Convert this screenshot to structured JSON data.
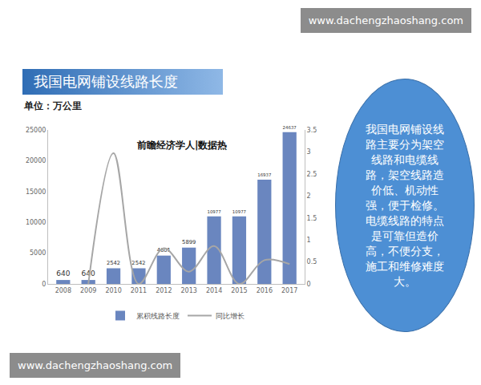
{
  "chart_data": {
    "type": "bar",
    "title": "我国电网铺设线路长度",
    "ylabel": "单位：万公里",
    "annotations": [
      {
        "text": "前瞻经济学人|数据热"
      }
    ],
    "categories": [
      "2008",
      "2009",
      "2010",
      "2011",
      "2012",
      "2013",
      "2014",
      "2015",
      "2016",
      "2017"
    ],
    "series": [
      {
        "name": "累积线路长度",
        "type": "bar",
        "color": "#6a86bf",
        "data_labels": true,
        "values": [
          640,
          640,
          2542,
          2542,
          4601,
          5899,
          10977,
          10977,
          16937,
          24637
        ]
      },
      {
        "name": "同比增长",
        "type": "line",
        "color": "#a6a6a6",
        "axis": "y2",
        "line_style": "smooth",
        "values": [
          null,
          0,
          2.97,
          0,
          0.81,
          0.28,
          0.86,
          0,
          0.54,
          0.45
        ]
      }
    ],
    "ylim": [
      0,
      25000
    ],
    "yticks": [
      0,
      5000,
      10000,
      15000,
      20000,
      25000
    ],
    "y2lim": [
      0,
      3.5
    ],
    "y2ticks": [
      0,
      0.5,
      1,
      1.5,
      2,
      2.5,
      3,
      3.5
    ],
    "grid": false,
    "legend": "bottom"
  },
  "page": {
    "url_top": "www.dachengzhaoshang.com",
    "url_bottom": "www.dachengzhaoshang.com",
    "note": "我国电网铺设线路主要分为架空线路和电缆线路，架空线路造价低、机动性强，便于检修。电缆线路的特点是可靠但造价高，不便分支，施工和维修难度大。"
  }
}
